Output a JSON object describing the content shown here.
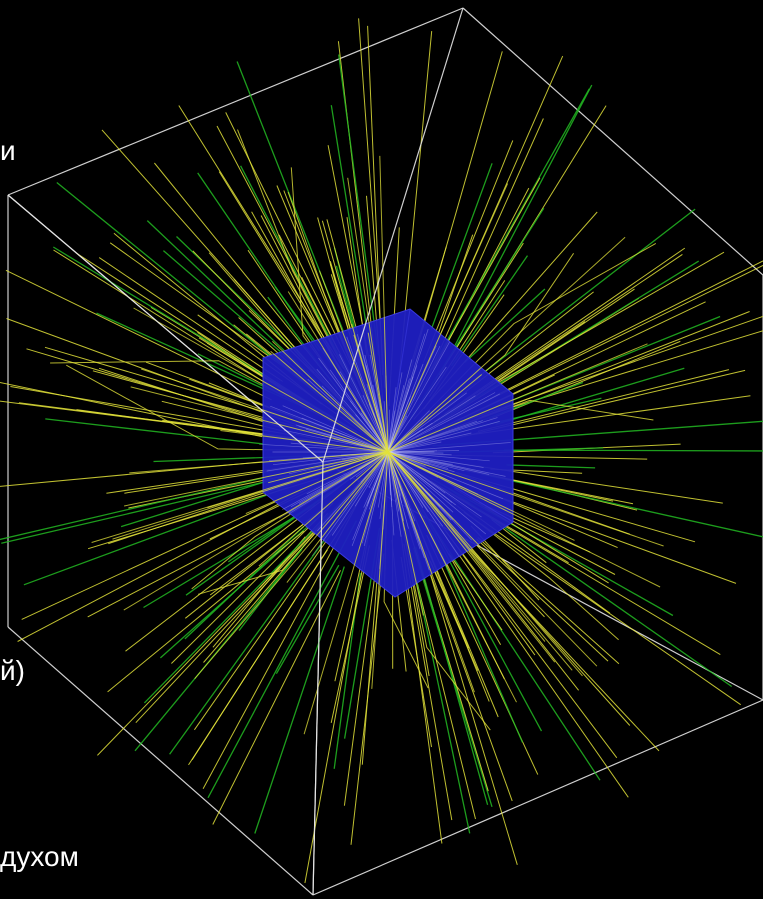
{
  "labels": {
    "top": "и",
    "middle": "й)",
    "bottom": "духом"
  },
  "colors": {
    "background": "#000000",
    "world_box": "#e6e6e6",
    "detector_cube": "#1f1fc2",
    "detector_cube_edges": "#3a3ae0",
    "track_gamma": "#e2e23a",
    "track_electron": "#22b822",
    "track_inner": "#d8d8ff"
  }
}
